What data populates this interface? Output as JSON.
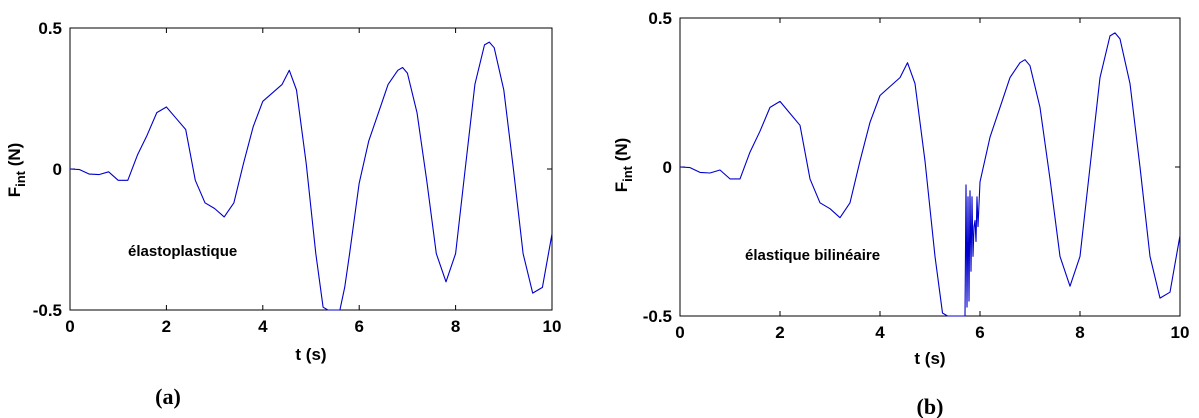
{
  "chart_data": [
    {
      "panel": "a",
      "type": "line",
      "caption": "(a)",
      "xlabel": "t (s)",
      "ylabel_main": "F",
      "ylabel_sub": "int",
      "ylabel_unit": " (N)",
      "annotation": "élastoplastique",
      "xlim": [
        0,
        10
      ],
      "ylim": [
        -0.5,
        0.5
      ],
      "xticks": [
        "0",
        "2",
        "4",
        "6",
        "8",
        "10"
      ],
      "yticks": [
        "-0.5",
        "0",
        "0.5"
      ],
      "line_color": "#0000cc",
      "x": [
        0,
        0.2,
        0.4,
        0.6,
        0.8,
        1.0,
        1.2,
        1.4,
        1.6,
        1.8,
        2.0,
        2.2,
        2.4,
        2.6,
        2.8,
        3.0,
        3.2,
        3.4,
        3.6,
        3.8,
        4.0,
        4.2,
        4.4,
        4.55,
        4.7,
        4.9,
        5.1,
        5.25,
        5.35,
        5.6,
        5.7,
        5.8,
        6.0,
        6.2,
        6.4,
        6.6,
        6.8,
        6.9,
        7.0,
        7.2,
        7.4,
        7.6,
        7.8,
        8.0,
        8.2,
        8.4,
        8.6,
        8.7,
        8.8,
        9.0,
        9.2,
        9.4,
        9.6,
        9.8,
        10.0
      ],
      "y": [
        0,
        -0.002,
        -0.018,
        -0.02,
        -0.01,
        -0.04,
        -0.04,
        0.05,
        0.12,
        0.2,
        0.22,
        0.18,
        0.14,
        -0.04,
        -0.12,
        -0.14,
        -0.17,
        -0.12,
        0.02,
        0.15,
        0.24,
        0.27,
        0.3,
        0.35,
        0.28,
        0.02,
        -0.3,
        -0.49,
        -0.5,
        -0.5,
        -0.42,
        -0.3,
        -0.05,
        0.1,
        0.2,
        0.3,
        0.35,
        0.36,
        0.34,
        0.2,
        -0.04,
        -0.3,
        -0.4,
        -0.3,
        0.0,
        0.3,
        0.44,
        0.45,
        0.43,
        0.28,
        0.0,
        -0.3,
        -0.44,
        -0.42,
        -0.23
      ]
    },
    {
      "panel": "b",
      "type": "line",
      "caption": "(b)",
      "xlabel": "t (s)",
      "ylabel_main": "F",
      "ylabel_sub": "int",
      "ylabel_unit": " (N)",
      "annotation": "élastique bilinéaire",
      "xlim": [
        0,
        10
      ],
      "ylim": [
        -0.5,
        0.5
      ],
      "xticks": [
        "0",
        "2",
        "4",
        "6",
        "8",
        "10"
      ],
      "yticks": [
        "-0.5",
        "0",
        "0.5"
      ],
      "line_color": "#0000cc",
      "x": [
        0,
        0.2,
        0.4,
        0.6,
        0.8,
        1.0,
        1.2,
        1.4,
        1.6,
        1.8,
        2.0,
        2.2,
        2.4,
        2.6,
        2.8,
        3.0,
        3.2,
        3.4,
        3.6,
        3.8,
        4.0,
        4.2,
        4.4,
        4.55,
        4.7,
        4.9,
        5.1,
        5.25,
        5.35,
        5.6,
        5.7,
        5.72,
        5.74,
        5.76,
        5.78,
        5.8,
        5.82,
        5.84,
        5.86,
        5.88,
        5.9,
        5.92,
        5.94,
        5.96,
        6.0,
        6.2,
        6.4,
        6.6,
        6.8,
        6.9,
        7.0,
        7.2,
        7.4,
        7.6,
        7.8,
        8.0,
        8.2,
        8.4,
        8.6,
        8.7,
        8.8,
        9.0,
        9.2,
        9.4,
        9.6,
        9.8,
        10.0
      ],
      "y": [
        0,
        -0.002,
        -0.018,
        -0.02,
        -0.01,
        -0.04,
        -0.04,
        0.05,
        0.12,
        0.2,
        0.22,
        0.18,
        0.14,
        -0.04,
        -0.12,
        -0.14,
        -0.17,
        -0.12,
        0.02,
        0.15,
        0.24,
        0.27,
        0.3,
        0.35,
        0.28,
        0.02,
        -0.3,
        -0.49,
        -0.5,
        -0.5,
        -0.5,
        -0.06,
        -0.47,
        -0.1,
        -0.45,
        -0.08,
        -0.35,
        -0.1,
        -0.3,
        -0.2,
        -0.18,
        -0.25,
        -0.1,
        -0.2,
        -0.05,
        0.1,
        0.2,
        0.3,
        0.35,
        0.36,
        0.34,
        0.2,
        -0.04,
        -0.3,
        -0.4,
        -0.3,
        0.0,
        0.3,
        0.44,
        0.45,
        0.43,
        0.28,
        0.0,
        -0.3,
        -0.44,
        -0.42,
        -0.23
      ]
    }
  ]
}
